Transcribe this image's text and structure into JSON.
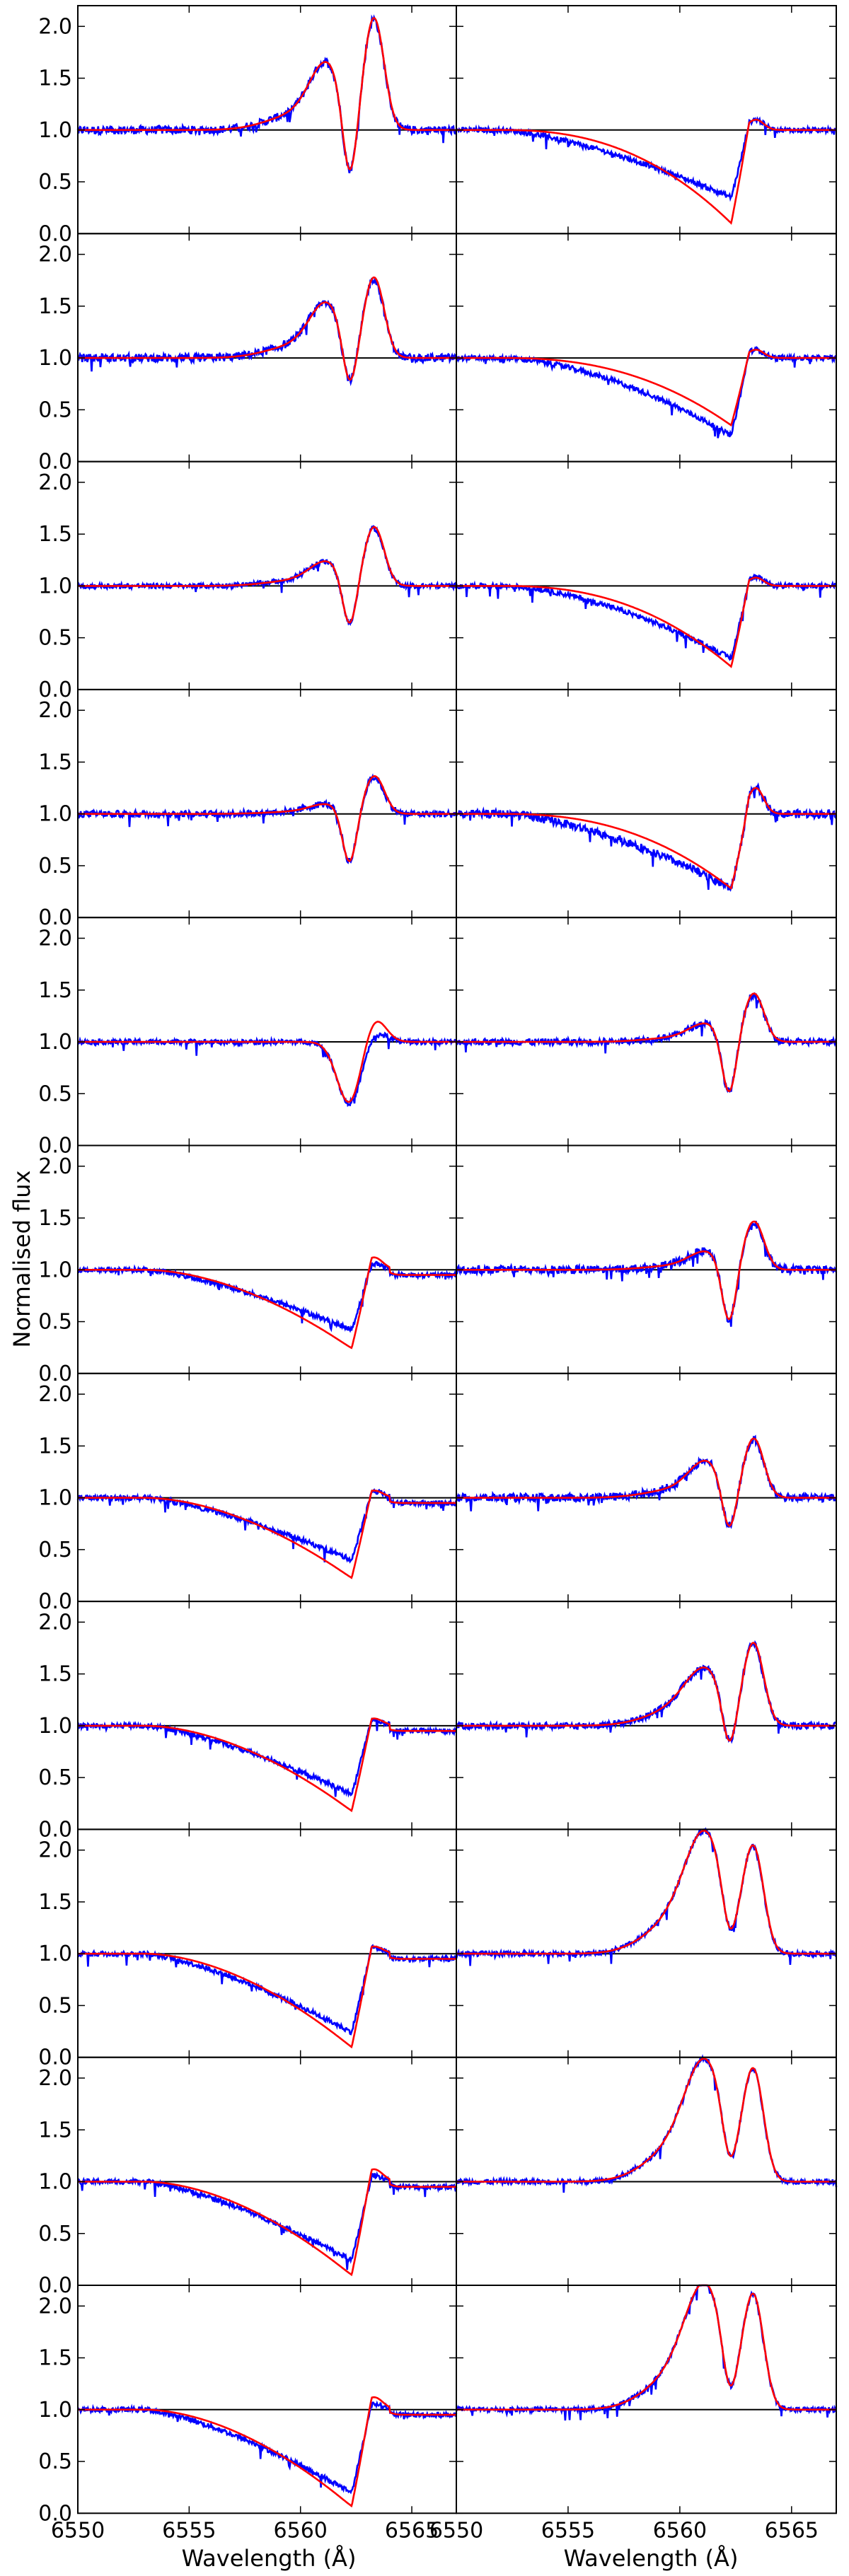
{
  "chart_data": {
    "type": "line",
    "ylabel": "Normalised flux",
    "xlabel": "Wavelength (Å)",
    "xlim": [
      6550,
      6567
    ],
    "ylim": [
      0,
      2.2
    ],
    "x_ticks": [
      6550,
      6555,
      6560,
      6565
    ],
    "y_ticks": [
      0.0,
      0.5,
      1.0,
      1.5,
      2.0
    ],
    "y_tick_labels": [
      "0.0",
      "0.5",
      "1.0",
      "1.5",
      "2.0"
    ],
    "grid": false,
    "rows": 11,
    "cols": 2,
    "reference_line": 1.0,
    "series_colors": {
      "observed": "#0000ff",
      "model": "#ff0000",
      "reference": "#000000"
    },
    "panels": [
      {
        "row": 0,
        "col": 0,
        "kind": "pcyg_emission",
        "depth": 0.38,
        "blue_peak": 1.55,
        "red_peak": 2.05,
        "obs_noise": 0.05
      },
      {
        "row": 0,
        "col": 1,
        "kind": "wide_absorption",
        "min_obs": 0.35,
        "min_model": 0.1,
        "red_peak": 1.1,
        "obs_sag": 0.6,
        "obs_noise": 0.03
      },
      {
        "row": 1,
        "col": 0,
        "kind": "pcyg_emission",
        "depth": 0.6,
        "blue_peak": 1.45,
        "red_peak": 1.75,
        "obs_noise": 0.05
      },
      {
        "row": 1,
        "col": 1,
        "kind": "wide_absorption",
        "min_obs": 0.25,
        "min_model": 0.35,
        "red_peak": 1.08,
        "obs_sag": 0.15,
        "obs_noise": 0.03
      },
      {
        "row": 2,
        "col": 0,
        "kind": "pcyg_emission",
        "depth": 0.55,
        "blue_peak": 1.2,
        "red_peak": 1.55,
        "obs_noise": 0.03
      },
      {
        "row": 2,
        "col": 1,
        "kind": "wide_absorption",
        "min_obs": 0.3,
        "min_model": 0.22,
        "red_peak": 1.08,
        "obs_sag": 0.2,
        "obs_noise": 0.03
      },
      {
        "row": 3,
        "col": 0,
        "kind": "pcyg_emission",
        "depth": 0.5,
        "blue_peak": 1.08,
        "red_peak": 1.35,
        "obs_noise": 0.04
      },
      {
        "row": 3,
        "col": 1,
        "kind": "wide_absorption",
        "min_obs": 0.28,
        "min_model": 0.28,
        "red_peak": 1.25,
        "obs_sag": 0.35,
        "obs_noise": 0.05
      },
      {
        "row": 4,
        "col": 0,
        "kind": "single_absorption",
        "depth": 0.4,
        "red_peak": 1.25,
        "obs_noise": 0.03
      },
      {
        "row": 4,
        "col": 1,
        "kind": "pcyg_emission",
        "depth": 0.45,
        "blue_peak": 1.15,
        "red_peak": 1.45,
        "obs_noise": 0.04
      },
      {
        "row": 5,
        "col": 0,
        "kind": "broad_absorption",
        "depth": 0.3,
        "red_peak": 1.1,
        "obs_noise": 0.03
      },
      {
        "row": 5,
        "col": 1,
        "kind": "pcyg_emission",
        "depth": 0.45,
        "blue_peak": 1.15,
        "red_peak": 1.45,
        "obs_noise": 0.05
      },
      {
        "row": 6,
        "col": 0,
        "kind": "broad_absorption",
        "depth": 0.28,
        "red_peak": 1.05,
        "obs_noise": 0.03
      },
      {
        "row": 6,
        "col": 1,
        "kind": "pcyg_emission",
        "depth": 0.6,
        "blue_peak": 1.3,
        "red_peak": 1.55,
        "obs_noise": 0.05
      },
      {
        "row": 7,
        "col": 0,
        "kind": "broad_absorption",
        "depth": 0.22,
        "red_peak": 1.05,
        "obs_noise": 0.03
      },
      {
        "row": 7,
        "col": 1,
        "kind": "double_peak",
        "depth": 0.6,
        "blue_peak": 1.45,
        "red_peak": 1.75,
        "obs_noise": 0.04
      },
      {
        "row": 8,
        "col": 0,
        "kind": "broad_absorption",
        "depth": 0.12,
        "red_peak": 1.05,
        "obs_noise": 0.03
      },
      {
        "row": 8,
        "col": 1,
        "kind": "double_peak",
        "depth": 0.75,
        "blue_peak": 1.95,
        "red_peak": 1.95,
        "obs_noise": 0.03
      },
      {
        "row": 9,
        "col": 0,
        "kind": "broad_absorption",
        "depth": 0.12,
        "red_peak": 1.1,
        "obs_noise": 0.03
      },
      {
        "row": 9,
        "col": 1,
        "kind": "double_peak",
        "depth": 0.75,
        "blue_peak": 1.95,
        "red_peak": 2.0,
        "obs_noise": 0.03
      },
      {
        "row": 10,
        "col": 0,
        "kind": "broad_absorption",
        "depth": 0.08,
        "red_peak": 1.1,
        "obs_noise": 0.03
      },
      {
        "row": 10,
        "col": 1,
        "kind": "double_peak",
        "depth": 0.72,
        "blue_peak": 1.98,
        "red_peak": 2.02,
        "obs_noise": 0.03
      }
    ]
  }
}
